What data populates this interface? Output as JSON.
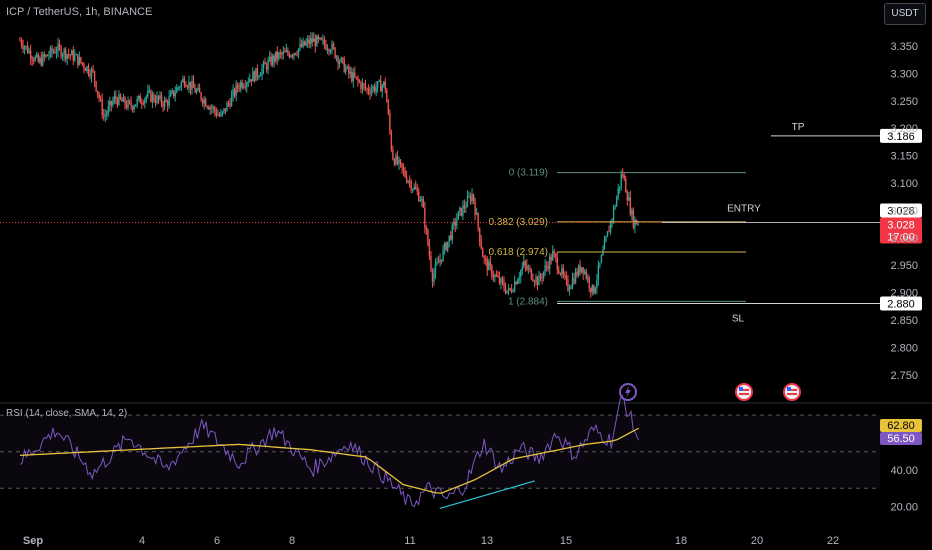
{
  "header": {
    "symbol_line": "ICP / TetherUS, 1h, BINANCE",
    "currency_button": "USDT"
  },
  "rsi_header": "RSI (14, close, SMA, 14, 2)",
  "chart_data": [
    {
      "type": "line",
      "subtype": "candlestick",
      "title": "ICP / TetherUS, 1h, BINANCE",
      "x_ticks": [
        "Sep",
        "4",
        "6",
        "8",
        "11",
        "13",
        "15",
        "18",
        "20",
        "22"
      ],
      "y_ticks": [
        "3.350",
        "3.300",
        "3.250",
        "3.200",
        "3.150",
        "3.100",
        "3.050",
        "3.000",
        "2.950",
        "2.900",
        "2.850",
        "2.800",
        "2.750"
      ],
      "ylim": [
        2.725,
        3.385
      ],
      "price_path": [
        {
          "x": 0,
          "y": 3.36
        },
        {
          "x": 0.5,
          "y": 3.32
        },
        {
          "x": 1,
          "y": 3.345
        },
        {
          "x": 1.5,
          "y": 3.33
        },
        {
          "x": 2,
          "y": 3.3
        },
        {
          "x": 2.3,
          "y": 3.22
        },
        {
          "x": 2.6,
          "y": 3.255
        },
        {
          "x": 3,
          "y": 3.24
        },
        {
          "x": 3.5,
          "y": 3.26
        },
        {
          "x": 4,
          "y": 3.245
        },
        {
          "x": 4.5,
          "y": 3.29
        },
        {
          "x": 5,
          "y": 3.255
        },
        {
          "x": 5.5,
          "y": 3.22
        },
        {
          "x": 6,
          "y": 3.28
        },
        {
          "x": 6.5,
          "y": 3.3
        },
        {
          "x": 7,
          "y": 3.33
        },
        {
          "x": 7.5,
          "y": 3.34
        },
        {
          "x": 8,
          "y": 3.36
        },
        {
          "x": 8.5,
          "y": 3.35
        },
        {
          "x": 9,
          "y": 3.3
        },
        {
          "x": 9.5,
          "y": 3.27
        },
        {
          "x": 10,
          "y": 3.28
        },
        {
          "x": 10.2,
          "y": 3.15
        },
        {
          "x": 10.5,
          "y": 3.12
        },
        {
          "x": 11,
          "y": 3.07
        },
        {
          "x": 11.3,
          "y": 2.93
        },
        {
          "x": 11.7,
          "y": 2.99
        },
        {
          "x": 12,
          "y": 3.04
        },
        {
          "x": 12.4,
          "y": 3.08
        },
        {
          "x": 12.7,
          "y": 2.96
        },
        {
          "x": 13,
          "y": 2.93
        },
        {
          "x": 13.4,
          "y": 2.9
        },
        {
          "x": 13.8,
          "y": 2.95
        },
        {
          "x": 14.2,
          "y": 2.92
        },
        {
          "x": 14.6,
          "y": 2.97
        },
        {
          "x": 15,
          "y": 2.91
        },
        {
          "x": 15.4,
          "y": 2.95
        },
        {
          "x": 15.7,
          "y": 2.9
        },
        {
          "x": 16,
          "y": 2.98
        },
        {
          "x": 16.3,
          "y": 3.06
        },
        {
          "x": 16.5,
          "y": 3.12
        },
        {
          "x": 16.8,
          "y": 3.03
        },
        {
          "x": 16.95,
          "y": 3.028
        }
      ],
      "current_price": 3.028,
      "current_price_label": "3.028",
      "countdown": "17:00",
      "fib_levels": [
        {
          "label": "0 (3.119)",
          "y": 3.119,
          "color": "#5d8f7e"
        },
        {
          "label": "0.382 (3.029)",
          "y": 3.029,
          "color": "#d3b84a"
        },
        {
          "label": "0.618 (2.974)",
          "y": 2.974,
          "color": "#d3b84a"
        },
        {
          "label": "1 (2.884)",
          "y": 2.884,
          "color": "#5d8f7e"
        }
      ],
      "annotations": [
        {
          "text": "TP",
          "price": 3.186,
          "price_label": "3.186"
        },
        {
          "text": "ENTRY",
          "price": 3.028
        },
        {
          "text": "SL",
          "price": 2.88,
          "price_label": "2.880"
        }
      ],
      "colors": {
        "up": "#26a69a",
        "down": "#ef5350",
        "price_tag": "#f23645"
      }
    },
    {
      "type": "line",
      "title": "RSI (14, close, SMA, 14, 2)",
      "y_ticks": [
        "60.00",
        "40.00",
        "20.00"
      ],
      "ylim": [
        15,
        85
      ],
      "bands": [
        70,
        50,
        30
      ],
      "series": [
        {
          "color": "#7e57c2",
          "values": [
            {
              "x": 0,
              "y": 45
            },
            {
              "x": 1,
              "y": 62
            },
            {
              "x": 2,
              "y": 38
            },
            {
              "x": 3,
              "y": 58
            },
            {
              "x": 4,
              "y": 40
            },
            {
              "x": 5,
              "y": 64
            },
            {
              "x": 6,
              "y": 44
            },
            {
              "x": 7,
              "y": 62
            },
            {
              "x": 8,
              "y": 40
            },
            {
              "x": 9,
              "y": 55
            },
            {
              "x": 10,
              "y": 36
            },
            {
              "x": 10.7,
              "y": 21
            },
            {
              "x": 11.2,
              "y": 30
            },
            {
              "x": 11.7,
              "y": 24
            },
            {
              "x": 12.2,
              "y": 32
            },
            {
              "x": 12.7,
              "y": 55
            },
            {
              "x": 13.2,
              "y": 40
            },
            {
              "x": 13.7,
              "y": 52
            },
            {
              "x": 14.2,
              "y": 46
            },
            {
              "x": 14.7,
              "y": 60
            },
            {
              "x": 15.2,
              "y": 48
            },
            {
              "x": 15.7,
              "y": 62
            },
            {
              "x": 16.2,
              "y": 56
            },
            {
              "x": 16.5,
              "y": 80
            },
            {
              "x": 16.95,
              "y": 56.5
            }
          ]
        },
        {
          "color": "#e8c33a",
          "values": [
            {
              "x": 0,
              "y": 48
            },
            {
              "x": 2,
              "y": 50
            },
            {
              "x": 4,
              "y": 52
            },
            {
              "x": 6,
              "y": 54
            },
            {
              "x": 8,
              "y": 51
            },
            {
              "x": 9.5,
              "y": 47
            },
            {
              "x": 10.5,
              "y": 32
            },
            {
              "x": 11.5,
              "y": 27
            },
            {
              "x": 12.5,
              "y": 35
            },
            {
              "x": 13.5,
              "y": 46
            },
            {
              "x": 14.5,
              "y": 50
            },
            {
              "x": 15.5,
              "y": 54
            },
            {
              "x": 16.3,
              "y": 56
            },
            {
              "x": 16.95,
              "y": 62.8
            }
          ]
        }
      ],
      "trendline": [
        {
          "x": 11.5,
          "y": 19
        },
        {
          "x": 14.1,
          "y": 34
        }
      ],
      "value_labels": [
        "62.80",
        "56.50"
      ]
    }
  ]
}
